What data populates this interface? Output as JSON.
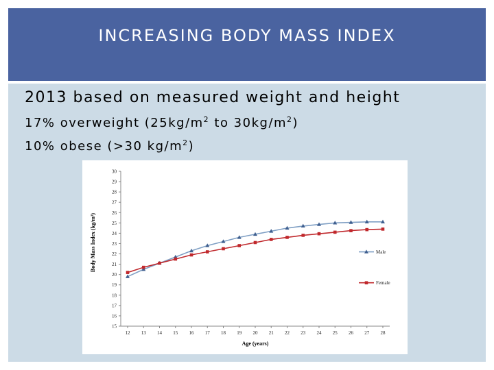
{
  "slide": {
    "title": "INCREASING BODY MASS INDEX",
    "subtitle": "2013 based on measured weight and height",
    "bullets": [
      {
        "prefix": "17%",
        "text_a": " overweight (25kg/m",
        "sup_a": "2",
        "text_b": " to 30kg/m",
        "sup_b": "2",
        "text_c": ")"
      },
      {
        "prefix": "10%",
        "text_a": " obese (>30 kg/m",
        "sup_a": "2",
        "text_c": ")"
      }
    ]
  },
  "colors": {
    "title_bar": "#4a63a0",
    "content_bg": "#ccdbe6",
    "male": "#7f9fc4",
    "male_marker": "#3f5f8f",
    "female": "#c0282c"
  },
  "chart_data": {
    "type": "line",
    "xlabel": "Age (years)",
    "ylabel": "Body Mass Index (kg/m²)",
    "x": [
      12,
      13,
      14,
      15,
      16,
      17,
      18,
      19,
      20,
      21,
      22,
      23,
      24,
      25,
      26,
      27,
      28
    ],
    "x_tick_labels": [
      "12",
      "13",
      "14",
      "15",
      "16",
      "17",
      "18",
      "19",
      "20",
      "21",
      "22",
      "23",
      "24",
      "25",
      "26",
      "27",
      "28"
    ],
    "ylim": [
      15,
      30
    ],
    "y_ticks": [
      15,
      16,
      17,
      18,
      19,
      20,
      21,
      22,
      23,
      24,
      25,
      26,
      27,
      28,
      29,
      30
    ],
    "legend_position": "right",
    "series": [
      {
        "name": "Male",
        "marker": "triangle",
        "values": [
          19.8,
          20.5,
          21.1,
          21.7,
          22.3,
          22.8,
          23.2,
          23.6,
          23.9,
          24.2,
          24.5,
          24.7,
          24.85,
          25.0,
          25.05,
          25.1,
          25.1
        ]
      },
      {
        "name": "Female",
        "marker": "square",
        "values": [
          20.2,
          20.7,
          21.1,
          21.5,
          21.9,
          22.2,
          22.5,
          22.8,
          23.1,
          23.4,
          23.6,
          23.8,
          23.95,
          24.1,
          24.25,
          24.35,
          24.4
        ]
      }
    ]
  }
}
